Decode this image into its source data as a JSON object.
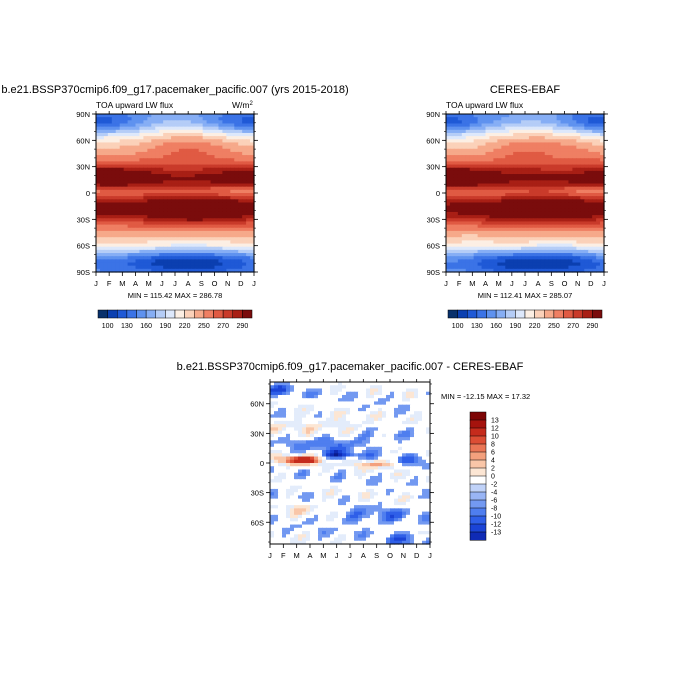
{
  "colors": {
    "top_scale": [
      "#08306b",
      "#0b3fb0",
      "#1f59d6",
      "#3b73e6",
      "#5f92ef",
      "#86aef5",
      "#b5cdf7",
      "#dde8fb",
      "#fcefe4",
      "#fbd1b9",
      "#f6a98a",
      "#ef7f63",
      "#e05a43",
      "#c93a2a",
      "#a81f15",
      "#7a0c0c"
    ],
    "diff_scale": [
      "#0a1a8c",
      "#0f2bb5",
      "#1b44d6",
      "#2f5fe8",
      "#4f7eef",
      "#7399f1",
      "#99b5f5",
      "#c0d2f8",
      "#e3ecfb",
      "#ffffff",
      "#fce6d4",
      "#f9c6a8",
      "#f3a07d",
      "#ea7656",
      "#dc4d34",
      "#c52b1c",
      "#a5130d",
      "#7d0505"
    ]
  },
  "chart_data": [
    {
      "type": "heatmap",
      "title": "b.e21.BSSP370cmip6.f09_g17.pacemaker_pacific.007 (yrs 2015-2018)",
      "subtitle_left": "TOA upward LW flux",
      "units": "W/m",
      "units_sup": "2",
      "x_ticks": [
        "J",
        "F",
        "M",
        "A",
        "M",
        "J",
        "J",
        "A",
        "S",
        "O",
        "N",
        "D",
        "J"
      ],
      "y_ticks": [
        "90N",
        "60N",
        "30N",
        "0",
        "30S",
        "60S",
        "90S"
      ],
      "min_max": "MIN = 115.42 MAX = 286.78",
      "colorbar_labels": [
        "100",
        "130",
        "160",
        "190",
        "220",
        "250",
        "270",
        "290"
      ],
      "variant": 0
    },
    {
      "type": "heatmap",
      "title": "CERES-EBAF",
      "subtitle_left": "TOA upward LW flux",
      "x_ticks": [
        "J",
        "F",
        "M",
        "A",
        "M",
        "J",
        "J",
        "A",
        "S",
        "O",
        "N",
        "D",
        "J"
      ],
      "y_ticks": [
        "90N",
        "60N",
        "30N",
        "0",
        "30S",
        "60S",
        "90S"
      ],
      "min_max": "MIN = 112.41 MAX = 285.07",
      "colorbar_labels": [
        "100",
        "130",
        "160",
        "190",
        "220",
        "250",
        "270",
        "290"
      ],
      "variant": 1
    },
    {
      "type": "heatmap",
      "title": "b.e21.BSSP370cmip6.f09_g17.pacemaker_pacific.007 - CERES-EBAF",
      "x_ticks": [
        "J",
        "F",
        "M",
        "A",
        "M",
        "J",
        "J",
        "A",
        "S",
        "O",
        "N",
        "D",
        "J"
      ],
      "y_ticks": [
        "60N",
        "30N",
        "0",
        "30S",
        "60S"
      ],
      "min_max": "MIN = -12.15 MAX =  17.32",
      "colorbar_labels": [
        "13",
        "12",
        "10",
        "8",
        "6",
        "4",
        "2",
        "0",
        "-2",
        "-4",
        "-6",
        "-8",
        "-10",
        "-12",
        "-13"
      ]
    }
  ]
}
